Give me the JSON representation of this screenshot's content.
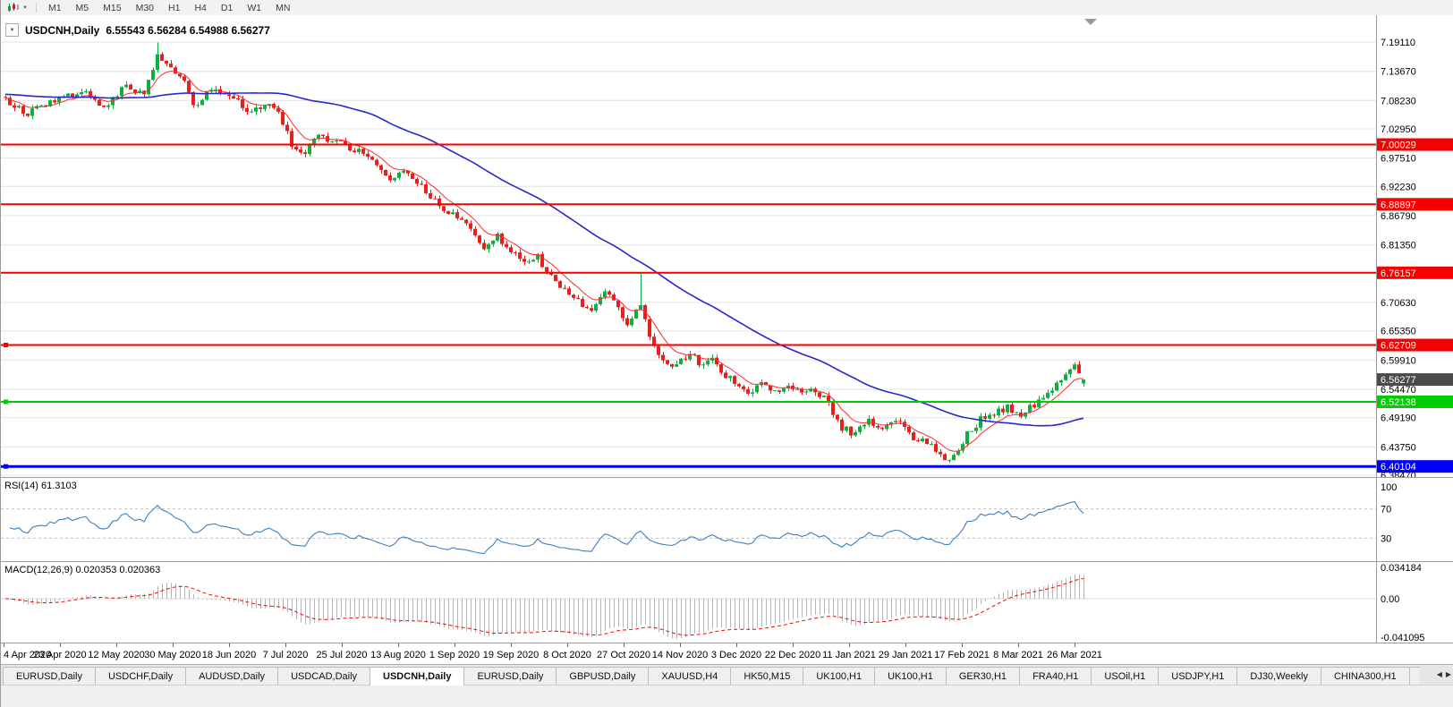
{
  "toolbar": {
    "caret": "▼",
    "timeframes": [
      "M1",
      "M5",
      "M15",
      "M30",
      "H1",
      "H4",
      "D1",
      "W1",
      "MN"
    ]
  },
  "chart": {
    "collapse_arrow": "▼",
    "title_symbol": "USDCNH,Daily",
    "title_ohlc": "6.55543 6.56284 6.54988 6.56277"
  },
  "colors": {
    "candle_up": "#0faf3f",
    "candle_down": "#e81f1f",
    "ma_fast": "#ff2a2a",
    "ma_slow": "#2828cc",
    "resistance_red": "#f60000",
    "support_green": "#00cc00",
    "support_blue": "#0000ff",
    "rsi_line": "#3d7fc2",
    "macd_histogram": "#b4b4b4",
    "macd_signal": "#ff0000",
    "current_price_bg": "#4a4a4a",
    "grid": "#e4e4e4"
  },
  "chart_data": {
    "type": "candlestick",
    "symbol": "USDCNH",
    "timeframe": "Daily",
    "ohlc_display": {
      "open": 6.55543,
      "high": 6.56284,
      "low": 6.54988,
      "close": 6.56277
    },
    "current_price": 6.56277,
    "y_range": [
      6.3847,
      7.1911
    ],
    "y_tick_labels": [
      "7.19110",
      "7.13670",
      "7.08230",
      "7.02950",
      "6.97510",
      "6.92230",
      "6.86790",
      "6.81350",
      "6.76070",
      "6.70630",
      "6.65350",
      "6.59910",
      "6.54470",
      "6.49190",
      "6.43750",
      "6.38470"
    ],
    "x_tick_labels": [
      "4 Apr 2020",
      "23 Apr 2020",
      "12 May 2020",
      "30 May 2020",
      "18 Jun 2020",
      "7 Jul 2020",
      "25 Jul 2020",
      "13 Aug 2020",
      "1 Sep 2020",
      "19 Sep 2020",
      "8 Oct 2020",
      "27 Oct 2020",
      "14 Nov 2020",
      "3 Dec 2020",
      "22 Dec 2020",
      "11 Jan 2021",
      "29 Jan 2021",
      "17 Feb 2021",
      "8 Mar 2021",
      "26 Mar 2021"
    ],
    "price_anchors": [
      [
        0,
        7.085
      ],
      [
        5,
        7.06
      ],
      [
        11,
        7.082
      ],
      [
        18,
        7.1
      ],
      [
        22,
        7.065
      ],
      [
        27,
        7.112
      ],
      [
        31,
        7.09
      ],
      [
        34,
        7.168
      ],
      [
        37,
        7.145
      ],
      [
        40,
        7.12
      ],
      [
        42,
        7.072
      ],
      [
        46,
        7.1
      ],
      [
        50,
        7.09
      ],
      [
        55,
        7.062
      ],
      [
        60,
        7.072
      ],
      [
        64,
        7.002
      ],
      [
        67,
        6.988
      ],
      [
        70,
        7.018
      ],
      [
        74,
        7.005
      ],
      [
        78,
        6.992
      ],
      [
        82,
        6.972
      ],
      [
        86,
        6.932
      ],
      [
        89,
        6.955
      ],
      [
        91,
        6.94
      ],
      [
        94,
        6.912
      ],
      [
        98,
        6.875
      ],
      [
        101,
        6.868
      ],
      [
        104,
        6.84
      ],
      [
        107,
        6.81
      ],
      [
        110,
        6.832
      ],
      [
        113,
        6.8
      ],
      [
        116,
        6.78
      ],
      [
        119,
        6.792
      ],
      [
        122,
        6.752
      ],
      [
        125,
        6.732
      ],
      [
        128,
        6.712
      ],
      [
        131,
        6.688
      ],
      [
        134,
        6.725
      ],
      [
        137,
        6.7
      ],
      [
        139,
        6.668
      ],
      [
        142,
        6.7
      ],
      [
        144,
        6.64
      ],
      [
        147,
        6.602
      ],
      [
        150,
        6.585
      ],
      [
        153,
        6.615
      ],
      [
        156,
        6.585
      ],
      [
        158,
        6.6
      ],
      [
        161,
        6.572
      ],
      [
        164,
        6.552
      ],
      [
        166,
        6.532
      ],
      [
        169,
        6.556
      ],
      [
        172,
        6.542
      ],
      [
        175,
        6.556
      ],
      [
        178,
        6.532
      ],
      [
        181,
        6.545
      ],
      [
        184,
        6.52
      ],
      [
        187,
        6.472
      ],
      [
        190,
        6.462
      ],
      [
        193,
        6.486
      ],
      [
        196,
        6.472
      ],
      [
        199,
        6.486
      ],
      [
        202,
        6.462
      ],
      [
        205,
        6.446
      ],
      [
        208,
        6.432
      ],
      [
        210,
        6.406
      ],
      [
        212,
        6.422
      ],
      [
        215,
        6.46
      ],
      [
        218,
        6.49
      ],
      [
        221,
        6.5
      ],
      [
        224,
        6.51
      ],
      [
        227,
        6.5
      ],
      [
        230,
        6.516
      ],
      [
        233,
        6.54
      ],
      [
        236,
        6.565
      ],
      [
        239,
        6.585
      ],
      [
        241,
        6.563
      ]
    ],
    "wick_spikes": [
      [
        34,
        0.022
      ],
      [
        142,
        0.056
      ]
    ],
    "horizontal_levels": [
      {
        "price": 7.00029,
        "label": "7.00029",
        "color": "#f60000",
        "width": 2,
        "handle": false
      },
      {
        "price": 6.88897,
        "label": "6.88897",
        "color": "#f60000",
        "width": 2,
        "handle": false
      },
      {
        "price": 6.76157,
        "label": "6.76157",
        "color": "#f60000",
        "width": 2,
        "handle": false
      },
      {
        "price": 6.62709,
        "label": "6.62709",
        "color": "#f60000",
        "width": 2,
        "handle": true
      },
      {
        "price": 6.52138,
        "label": "6.52138",
        "color": "#00cc00",
        "width": 2,
        "handle": true
      },
      {
        "price": 6.40104,
        "label": "6.40104",
        "color": "#0000ff",
        "width": 3,
        "handle": true
      }
    ],
    "moving_averages": [
      {
        "name": "fast-ma",
        "period": 8,
        "method": "ema",
        "color": "#ff2a2a"
      },
      {
        "name": "slow-ma",
        "period": 50,
        "method": "sma",
        "color": "#2828cc"
      }
    ],
    "indicators": {
      "rsi": {
        "label": "RSI(14) 61.3103",
        "period": 14,
        "last": 61.3103,
        "range": [
          0,
          100
        ],
        "levels": [
          70,
          30
        ],
        "ticks": [
          "100",
          "70",
          "30"
        ],
        "color": "#3d7fc2"
      },
      "macd": {
        "label": "MACD(12,26,9) 0.020353 0.020363",
        "fast": 12,
        "slow": 26,
        "signal": 9,
        "last": [
          0.020353,
          0.020363
        ],
        "scale_max": 0.034184,
        "scale_min": -0.041095,
        "ticks": [
          "0.034184",
          "0.00",
          "-0.041095"
        ]
      }
    }
  },
  "tabbar": {
    "scroll_left": "◀",
    "scroll_right": "▶",
    "tabs": [
      {
        "label": "EURUSD,Daily",
        "active": false
      },
      {
        "label": "USDCHF,Daily",
        "active": false
      },
      {
        "label": "AUDUSD,Daily",
        "active": false
      },
      {
        "label": "USDCAD,Daily",
        "active": false
      },
      {
        "label": "USDCNH,Daily",
        "active": true
      },
      {
        "label": "EURUSD,Daily",
        "active": false
      },
      {
        "label": "GBPUSD,Daily",
        "active": false
      },
      {
        "label": "XAUUSD,H4",
        "active": false
      },
      {
        "label": "HK50,M15",
        "active": false
      },
      {
        "label": "UK100,H1",
        "active": false
      },
      {
        "label": "UK100,H1",
        "active": false
      },
      {
        "label": "GER30,H1",
        "active": false
      },
      {
        "label": "FRA40,H1",
        "active": false
      },
      {
        "label": "USOil,H1",
        "active": false
      },
      {
        "label": "USDJPY,H1",
        "active": false
      },
      {
        "label": "DJ30,Weekly",
        "active": false
      },
      {
        "label": "CHINA300,H1",
        "active": false
      },
      {
        "label": "U",
        "active": false
      }
    ]
  }
}
